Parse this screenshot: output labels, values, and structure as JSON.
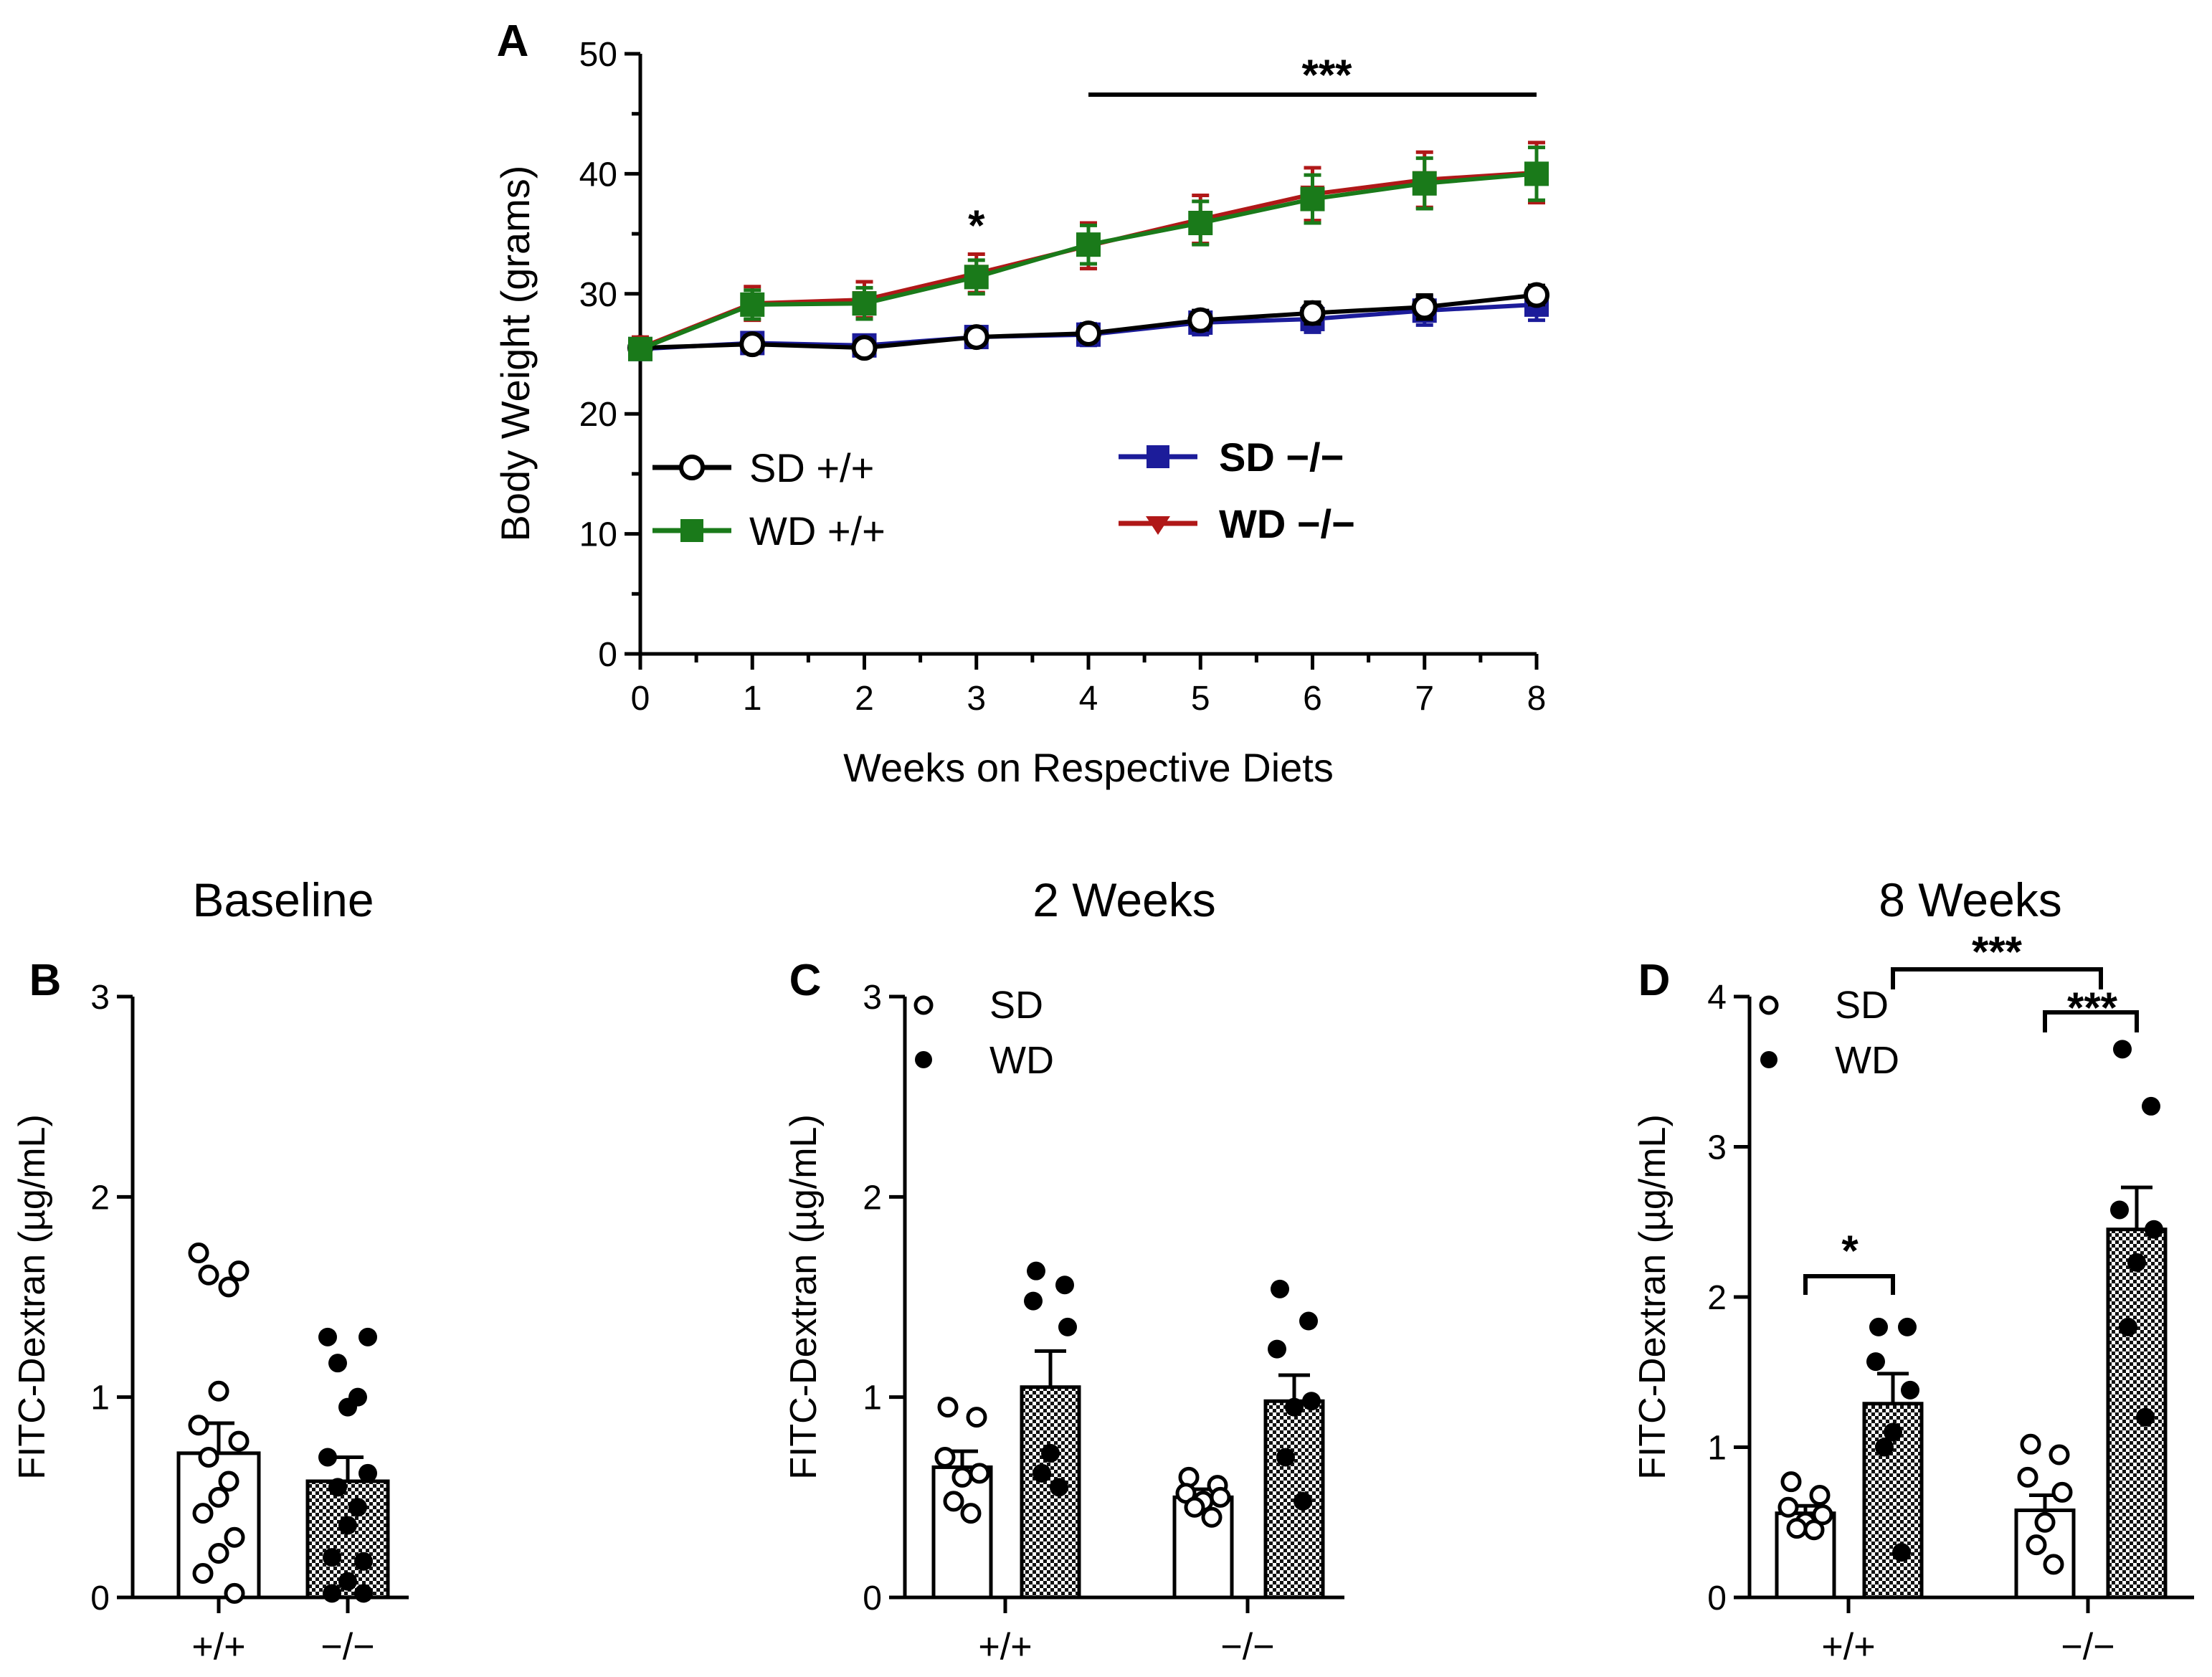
{
  "chart_data": [
    {
      "panel": "A",
      "type": "line",
      "title": "",
      "xlabel": "Weeks on Respective Diets",
      "ylabel": "Body Weight (grams)",
      "x": [
        0,
        1,
        2,
        3,
        4,
        5,
        6,
        7,
        8
      ],
      "xlim": [
        0,
        8
      ],
      "ylim": [
        0,
        50
      ],
      "yticks": [
        0,
        10,
        20,
        30,
        40,
        50
      ],
      "series": [
        {
          "name": "SD +/+",
          "label": "SD +/+",
          "color": "#000000",
          "marker": "circle-open",
          "values": [
            25.5,
            25.8,
            25.5,
            26.4,
            26.7,
            27.8,
            28.4,
            28.9,
            29.9
          ],
          "err": [
            0.6,
            0.7,
            0.6,
            0.6,
            0.7,
            0.8,
            0.9,
            1.0,
            0.8
          ]
        },
        {
          "name": "WD +/+",
          "label": "WD +/+",
          "color": "#1a7a1a",
          "marker": "square",
          "values": [
            25.4,
            29.1,
            29.2,
            31.4,
            34.1,
            35.9,
            37.9,
            39.2,
            40.0
          ],
          "err": [
            0.8,
            1.2,
            1.3,
            1.4,
            1.6,
            1.8,
            2.0,
            2.1,
            2.2
          ]
        },
        {
          "name": "SD −/−",
          "label": "SD −/−",
          "color": "#1c1c9a",
          "marker": "square",
          "values": [
            25.4,
            25.9,
            25.7,
            26.4,
            26.6,
            27.6,
            27.9,
            28.6,
            29.1
          ],
          "err": [
            0.7,
            0.8,
            0.8,
            0.8,
            0.9,
            1.0,
            1.1,
            1.2,
            1.3
          ]
        },
        {
          "name": "WD −/−",
          "label": "WD −/−",
          "color": "#b01818",
          "marker": "triangle-down",
          "values": [
            25.5,
            29.2,
            29.5,
            31.7,
            34.0,
            36.2,
            38.3,
            39.5,
            40.1
          ],
          "err": [
            0.9,
            1.4,
            1.5,
            1.6,
            1.9,
            2.0,
            2.2,
            2.3,
            2.5
          ]
        }
      ],
      "annotations": [
        {
          "text": "*",
          "x": 3
        },
        {
          "text": "***",
          "x_range": [
            4,
            8
          ]
        }
      ]
    },
    {
      "panel": "B",
      "type": "bar",
      "title": "Baseline",
      "ylabel": "FITC-Dextran (µg/mL)",
      "categories": [
        "+/+",
        "−/−"
      ],
      "ylim": [
        0,
        3
      ],
      "yticks": [
        0,
        1,
        2,
        3
      ],
      "bars": [
        {
          "group": "+/+",
          "diet": "SD",
          "mean": 0.72,
          "sem": 0.15,
          "points": [
            1.72,
            1.63,
            1.61,
            1.55,
            1.03,
            0.86,
            0.78,
            0.7,
            0.58,
            0.5,
            0.42,
            0.3,
            0.22,
            0.12,
            0.02
          ]
        },
        {
          "group": "−/−",
          "diet": "WD",
          "mean": 0.58,
          "sem": 0.12,
          "points": [
            1.3,
            1.3,
            1.17,
            1.0,
            0.95,
            0.7,
            0.62,
            0.55,
            0.45,
            0.36,
            0.2,
            0.18,
            0.08,
            0.02,
            0.02
          ]
        }
      ]
    },
    {
      "panel": "C",
      "type": "bar",
      "title": "2 Weeks",
      "ylabel": "FITC-Dextran (µg/mL)",
      "categories": [
        "+/+",
        "−/−"
      ],
      "ylim": [
        0,
        3
      ],
      "yticks": [
        0,
        1,
        2,
        3
      ],
      "legend": [
        "SD",
        "WD"
      ],
      "bars": [
        {
          "group": "+/+",
          "diet": "SD",
          "mean": 0.65,
          "sem": 0.08,
          "points": [
            0.95,
            0.9,
            0.7,
            0.62,
            0.6,
            0.48,
            0.42
          ]
        },
        {
          "group": "+/+",
          "diet": "WD",
          "mean": 1.05,
          "sem": 0.18,
          "points": [
            1.63,
            1.56,
            1.48,
            1.35,
            0.72,
            0.62,
            0.55
          ]
        },
        {
          "group": "−/−",
          "diet": "SD",
          "mean": 0.5,
          "sem": 0.04,
          "points": [
            0.6,
            0.56,
            0.52,
            0.5,
            0.48,
            0.45,
            0.4
          ]
        },
        {
          "group": "−/−",
          "diet": "WD",
          "mean": 0.98,
          "sem": 0.13,
          "points": [
            1.54,
            1.38,
            1.24,
            0.98,
            0.95,
            0.7,
            0.48
          ]
        }
      ]
    },
    {
      "panel": "D",
      "type": "bar",
      "title": "8 Weeks",
      "ylabel": "FITC-Dextran (µg/mL)",
      "categories": [
        "+/+",
        "−/−"
      ],
      "ylim": [
        0,
        4
      ],
      "yticks": [
        0,
        1,
        2,
        3,
        4
      ],
      "legend": [
        "SD",
        "WD"
      ],
      "bars": [
        {
          "group": "+/+",
          "diet": "SD",
          "mean": 0.56,
          "sem": 0.05,
          "points": [
            0.77,
            0.68,
            0.6,
            0.55,
            0.5,
            0.46,
            0.45
          ]
        },
        {
          "group": "+/+",
          "diet": "WD",
          "mean": 1.29,
          "sem": 0.2,
          "points": [
            1.8,
            1.8,
            1.57,
            1.38,
            1.1,
            1.0,
            0.3
          ]
        },
        {
          "group": "−/−",
          "diet": "SD",
          "mean": 0.58,
          "sem": 0.1,
          "points": [
            1.02,
            0.95,
            0.8,
            0.7,
            0.5,
            0.35,
            0.22
          ]
        },
        {
          "group": "−/−",
          "diet": "WD",
          "mean": 2.45,
          "sem": 0.28,
          "points": [
            3.65,
            3.27,
            2.58,
            2.45,
            2.23,
            1.8,
            1.2
          ]
        }
      ],
      "annotations": [
        {
          "text": "*",
          "between": [
            "+/+ SD",
            "+/+ WD"
          ]
        },
        {
          "text": "***",
          "between": [
            "−/− SD",
            "−/− WD"
          ]
        },
        {
          "text": "***",
          "between": [
            "+/+ WD",
            "−/− WD"
          ]
        }
      ]
    }
  ]
}
